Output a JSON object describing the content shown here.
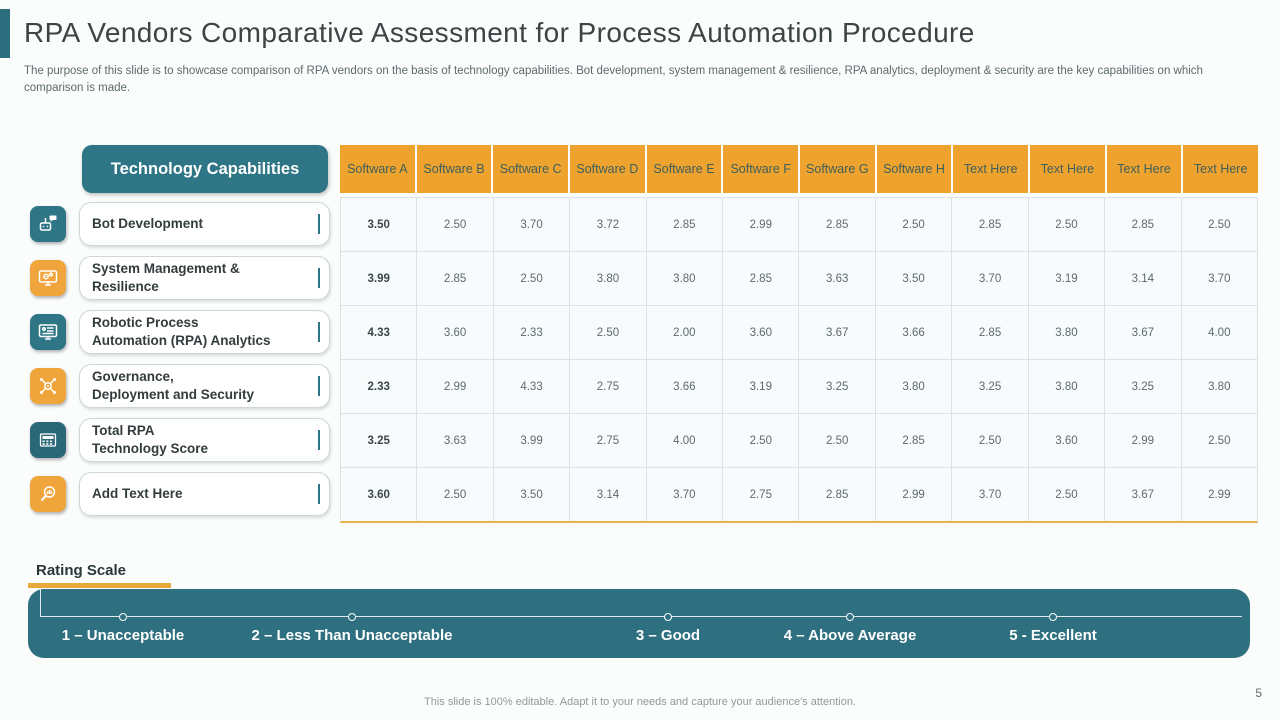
{
  "slide": {
    "title": "RPA Vendors Comparative Assessment for Process Automation Procedure",
    "subtitle": "The purpose of this slide is to showcase comparison of RPA vendors on the basis of technology capabilities. Bot development, system management & resilience, RPA analytics, deployment & security are the key capabilities on which comparison is made.",
    "footer_note": "This slide is 100% editable. Adapt it to your needs and capture your audience's attention.",
    "page_number": "5"
  },
  "colors": {
    "teal": "#2e7585",
    "dark_teal": "#2a6878",
    "rating_bar_teal": "#2e7080",
    "orange_header": "#efa32f",
    "orange_accent": "#e9a93c",
    "orange_table_rule": "#e9b14a"
  },
  "capabilities_panel": {
    "header": "Technology Capabilities",
    "rows": [
      {
        "label": "Bot Development",
        "icon": "robot-chat-icon",
        "icon_color": "teal"
      },
      {
        "label": "System Management &\nResilience",
        "icon": "monitor-gear-icon",
        "icon_color": "orange"
      },
      {
        "label": "Robotic Process\nAutomation (RPA) Analytics",
        "icon": "monitor-checklist-icon",
        "icon_color": "teal"
      },
      {
        "label": "Governance,\nDeployment and Security",
        "icon": "gear-network-icon",
        "icon_color": "orange"
      },
      {
        "label": "Total RPA\nTechnology Score",
        "icon": "calculator-icon",
        "icon_color": "dark-teal"
      },
      {
        "label": "Add Text Here",
        "icon": "magnifier-chart-icon",
        "icon_color": "orange"
      }
    ]
  },
  "table": {
    "columns": [
      "Software A",
      "Software B",
      "Software C",
      "Software D",
      "Software E",
      "Software F",
      "Software G",
      "Software H",
      "Text Here",
      "Text Here",
      "Text Here",
      "Text Here"
    ],
    "rows": [
      {
        "label": "Bot Development",
        "values": [
          "3.50",
          "2.50",
          "3.70",
          "3.72",
          "2.85",
          "2.99",
          "2.85",
          "2.50",
          "2.85",
          "2.50",
          "2.85",
          "2.50"
        ]
      },
      {
        "label": "System Management & Resilience",
        "values": [
          "3.99",
          "2.85",
          "2.50",
          "3.80",
          "3.80",
          "2.85",
          "3.63",
          "3.50",
          "3.70",
          "3.19",
          "3.14",
          "3.70"
        ]
      },
      {
        "label": "Robotic Process Automation (RPA) Analytics",
        "values": [
          "4.33",
          "3.60",
          "2.33",
          "2.50",
          "2.00",
          "3.60",
          "3.67",
          "3.66",
          "2.85",
          "3.80",
          "3.67",
          "4.00"
        ]
      },
      {
        "label": "Governance, Deployment and Security",
        "values": [
          "2.33",
          "2.99",
          "4.33",
          "2.75",
          "3.66",
          "3.19",
          "3.25",
          "3.80",
          "3.25",
          "3.80",
          "3.25",
          "3.80"
        ]
      },
      {
        "label": "Total RPA Technology Score",
        "values": [
          "3.25",
          "3.63",
          "3.99",
          "2.75",
          "4.00",
          "2.50",
          "2.50",
          "2.85",
          "2.50",
          "3.60",
          "2.99",
          "2.50"
        ]
      },
      {
        "label": "Add Text Here",
        "values": [
          "3.60",
          "2.50",
          "3.50",
          "3.14",
          "3.70",
          "2.75",
          "2.85",
          "2.99",
          "3.70",
          "2.50",
          "3.67",
          "2.99"
        ]
      }
    ]
  },
  "rating_scale": {
    "title": "Rating Scale",
    "labels": [
      "1 – Unacceptable",
      "2 – Less Than Unacceptable",
      "3 – Good",
      "4 – Above Average",
      "5 - Excellent"
    ]
  }
}
